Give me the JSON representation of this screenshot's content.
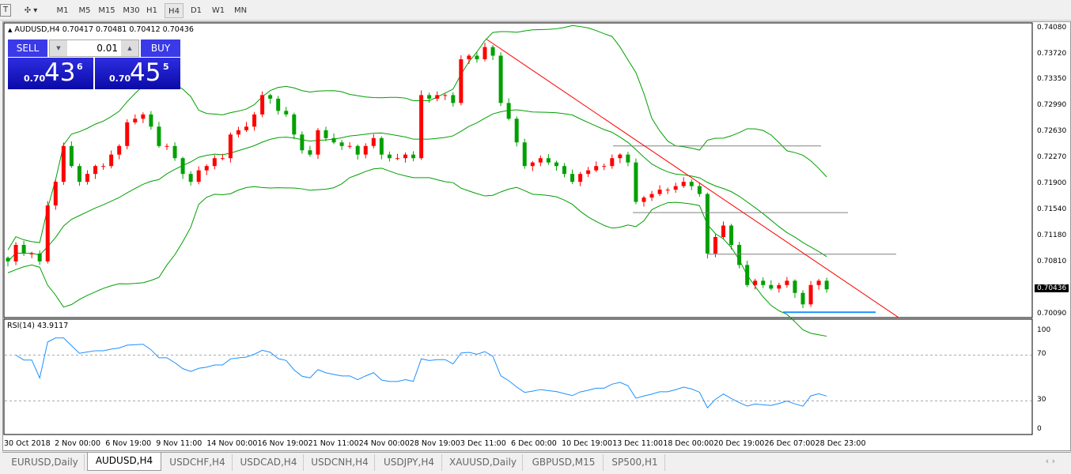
{
  "toolbar": {
    "text_tool": "T",
    "timeframes": [
      "M1",
      "M5",
      "M15",
      "M30",
      "H1",
      "H4",
      "D1",
      "W1",
      "MN"
    ],
    "active_timeframe": "H4"
  },
  "chart": {
    "header": "AUDUSD,H4  0.70417 0.70481 0.70412 0.70436",
    "trade_panel": {
      "sell": "SELL",
      "buy": "BUY",
      "lot": "0.01",
      "sell_prefix": "0.70",
      "sell_big": "43",
      "sell_sup": "6",
      "buy_prefix": "0.70",
      "buy_big": "45",
      "buy_sup": "5"
    },
    "price_axis": [
      "0.74080",
      "0.73720",
      "0.73350",
      "0.72990",
      "0.72630",
      "0.72270",
      "0.71900",
      "0.71540",
      "0.71180",
      "0.70810",
      "0.70090"
    ],
    "current_price": "0.70436",
    "rsi_label": "RSI(14) 43.9117",
    "rsi_axis": [
      "100",
      "70",
      "30",
      "0"
    ],
    "time_axis": [
      "30 Oct 2018",
      "2 Nov 00:00",
      "6 Nov 19:00",
      "9 Nov 11:00",
      "14 Nov 00:00",
      "16 Nov 19:00",
      "21 Nov 11:00",
      "24 Nov 00:00",
      "28 Nov 19:00",
      "3 Dec 11:00",
      "6 Dec 00:00",
      "10 Dec 19:00",
      "13 Dec 11:00",
      "18 Dec 00:00",
      "20 Dec 19:00",
      "26 Dec 07:00",
      "28 Dec 23:00"
    ]
  },
  "chart_data": {
    "type": "candlestick",
    "symbol": "AUDUSD",
    "timeframe": "H4",
    "ylim": [
      0.7009,
      0.7408
    ],
    "closes": [
      0.7083,
      0.7106,
      0.7094,
      0.7094,
      0.7083,
      0.7161,
      0.7194,
      0.7244,
      0.7216,
      0.7194,
      0.7205,
      0.7216,
      0.7216,
      0.7232,
      0.7244,
      0.7277,
      0.7282,
      0.7288,
      0.7271,
      0.7244,
      0.7244,
      0.7227,
      0.7205,
      0.7194,
      0.721,
      0.7216,
      0.7227,
      0.7227,
      0.726,
      0.7266,
      0.7271,
      0.7288,
      0.7315,
      0.731,
      0.7293,
      0.7288,
      0.726,
      0.7238,
      0.7232,
      0.7266,
      0.7255,
      0.7249,
      0.7244,
      0.7244,
      0.7232,
      0.7244,
      0.7255,
      0.7232,
      0.7227,
      0.7227,
      0.7232,
      0.7227,
      0.7315,
      0.731,
      0.7315,
      0.7315,
      0.7304,
      0.7365,
      0.737,
      0.7365,
      0.7382,
      0.737,
      0.7304,
      0.7282,
      0.7249,
      0.7216,
      0.7221,
      0.7227,
      0.7221,
      0.7216,
      0.7205,
      0.7194,
      0.7205,
      0.721,
      0.7216,
      0.7216,
      0.7227,
      0.7232,
      0.7221,
      0.7166,
      0.7172,
      0.7177,
      0.7183,
      0.7183,
      0.7188,
      0.7194,
      0.7188,
      0.7177,
      0.7094,
      0.7117,
      0.7133,
      0.7106,
      0.7078,
      0.705,
      0.7056,
      0.705,
      0.7045,
      0.705,
      0.7056,
      0.7039,
      0.7023,
      0.705,
      0.7056,
      0.7044
    ],
    "indicators": [
      "Bollinger Bands",
      "RSI(14)"
    ],
    "horizontal_lines": [
      {
        "price": 0.7244,
        "color": "#808080"
      },
      {
        "price": 0.7151,
        "color": "#808080"
      },
      {
        "price": 0.7093,
        "color": "#808080"
      },
      {
        "price": 0.7012,
        "color": "#1e90ff"
      }
    ],
    "trendline": {
      "from_price": 0.7393,
      "to_price": 0.7004,
      "color": "#ff0000"
    },
    "rsi_levels": [
      70,
      30
    ],
    "colors": {
      "up": "#ff0000",
      "down": "#00a000",
      "bands": "#00a000",
      "rsi": "#1e90ff"
    }
  },
  "tabs": [
    "EURUSD,Daily",
    "AUDUSD,H4",
    "USDCHF,H4",
    "USDCAD,H4",
    "USDCNH,H4",
    "USDJPY,H4",
    "XAUUSD,Daily",
    "GBPUSD,M15",
    "SP500,H1"
  ],
  "active_tab": "AUDUSD,H4"
}
